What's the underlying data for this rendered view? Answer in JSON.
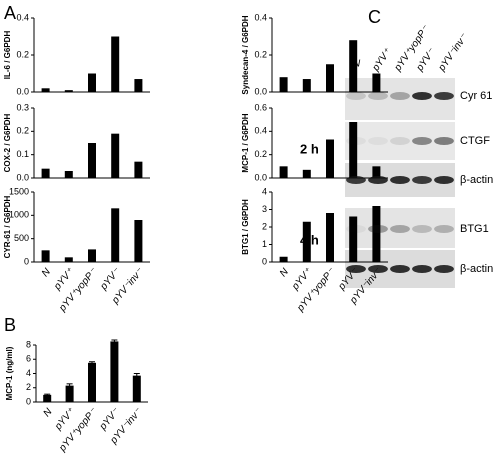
{
  "panel_labels": [
    "A",
    "B",
    "C"
  ],
  "chart_data": [
    {
      "type": "bar",
      "ylabel": "IL-6 / G6PDH",
      "values": [
        0.02,
        0.01,
        0.1,
        0.3,
        0.07
      ],
      "ylim": [
        0,
        0.4
      ],
      "yticks": [
        {
          "value": 0,
          "label": "0.0"
        },
        0.2,
        0.4
      ]
    },
    {
      "type": "bar",
      "ylabel": "Syndecan-4 / G6PDH",
      "values": [
        0.08,
        0.07,
        0.15,
        0.28,
        0.1
      ],
      "ylim": [
        0,
        0.4
      ],
      "yticks": [
        {
          "value": 0,
          "label": "0.0"
        },
        0.2,
        0.4
      ]
    },
    {
      "type": "bar",
      "ylabel": "COX-2 / G6PDH",
      "values": [
        0.04,
        0.03,
        0.15,
        0.19,
        0.07
      ],
      "ylim": [
        0,
        0.3
      ],
      "yticks": [
        {
          "value": 0,
          "label": "0.0"
        },
        0.1,
        0.2,
        0.3
      ]
    },
    {
      "type": "bar",
      "ylabel": "MCP-1 / G6PDH",
      "values": [
        0.1,
        0.07,
        0.33,
        0.48,
        0.1
      ],
      "ylim": [
        0,
        0.6
      ],
      "yticks": [
        {
          "value": 0,
          "label": "0.0"
        },
        0.2,
        0.4,
        0.6
      ]
    },
    {
      "type": "bar",
      "ylabel": "CYR-61 / G6PDH",
      "categories": [
        "N",
        "pYV⁺",
        "pYV⁺yopP⁻",
        "pYV⁻",
        "pYV⁻inv⁻"
      ],
      "values": [
        250,
        100,
        270,
        1150,
        900
      ],
      "ylim": [
        0,
        1500
      ],
      "yticks": [
        0,
        500,
        1000,
        1500
      ]
    },
    {
      "type": "bar",
      "ylabel": "BTG1 / G6PDH",
      "categories": [
        "N",
        "pYV⁺",
        "pYV⁺yopP⁻",
        "pYV⁻",
        "pYV⁻inv⁻"
      ],
      "values": [
        0.3,
        2.3,
        2.8,
        2.6,
        3.2
      ],
      "ylim": [
        0,
        4
      ],
      "yticks": [
        0,
        1,
        2,
        3,
        4
      ]
    },
    {
      "type": "bar",
      "ylabel": "MCP-1 (ng/ml)",
      "categories": [
        "N",
        "pYV⁺",
        "pYV⁺yopP⁻",
        "pYV⁻",
        "pYV⁻inv⁻"
      ],
      "values": [
        1,
        2.3,
        5.5,
        8.5,
        3.7
      ],
      "errors": [
        0.1,
        0.25,
        0.15,
        0.2,
        0.3
      ],
      "ylim": [
        0,
        8
      ],
      "yticks": [
        0,
        2,
        4,
        6,
        8
      ]
    }
  ],
  "blot": {
    "columns": [
      "N",
      "pYV⁺",
      "pYV⁺yopP⁻",
      "pYV⁻",
      "pYV⁻inv⁻"
    ],
    "times": [
      "2 h",
      "4 h"
    ],
    "rows": [
      "Cyr 61",
      "CTGF",
      "β-actin",
      "BTG1",
      "β-actin"
    ]
  }
}
